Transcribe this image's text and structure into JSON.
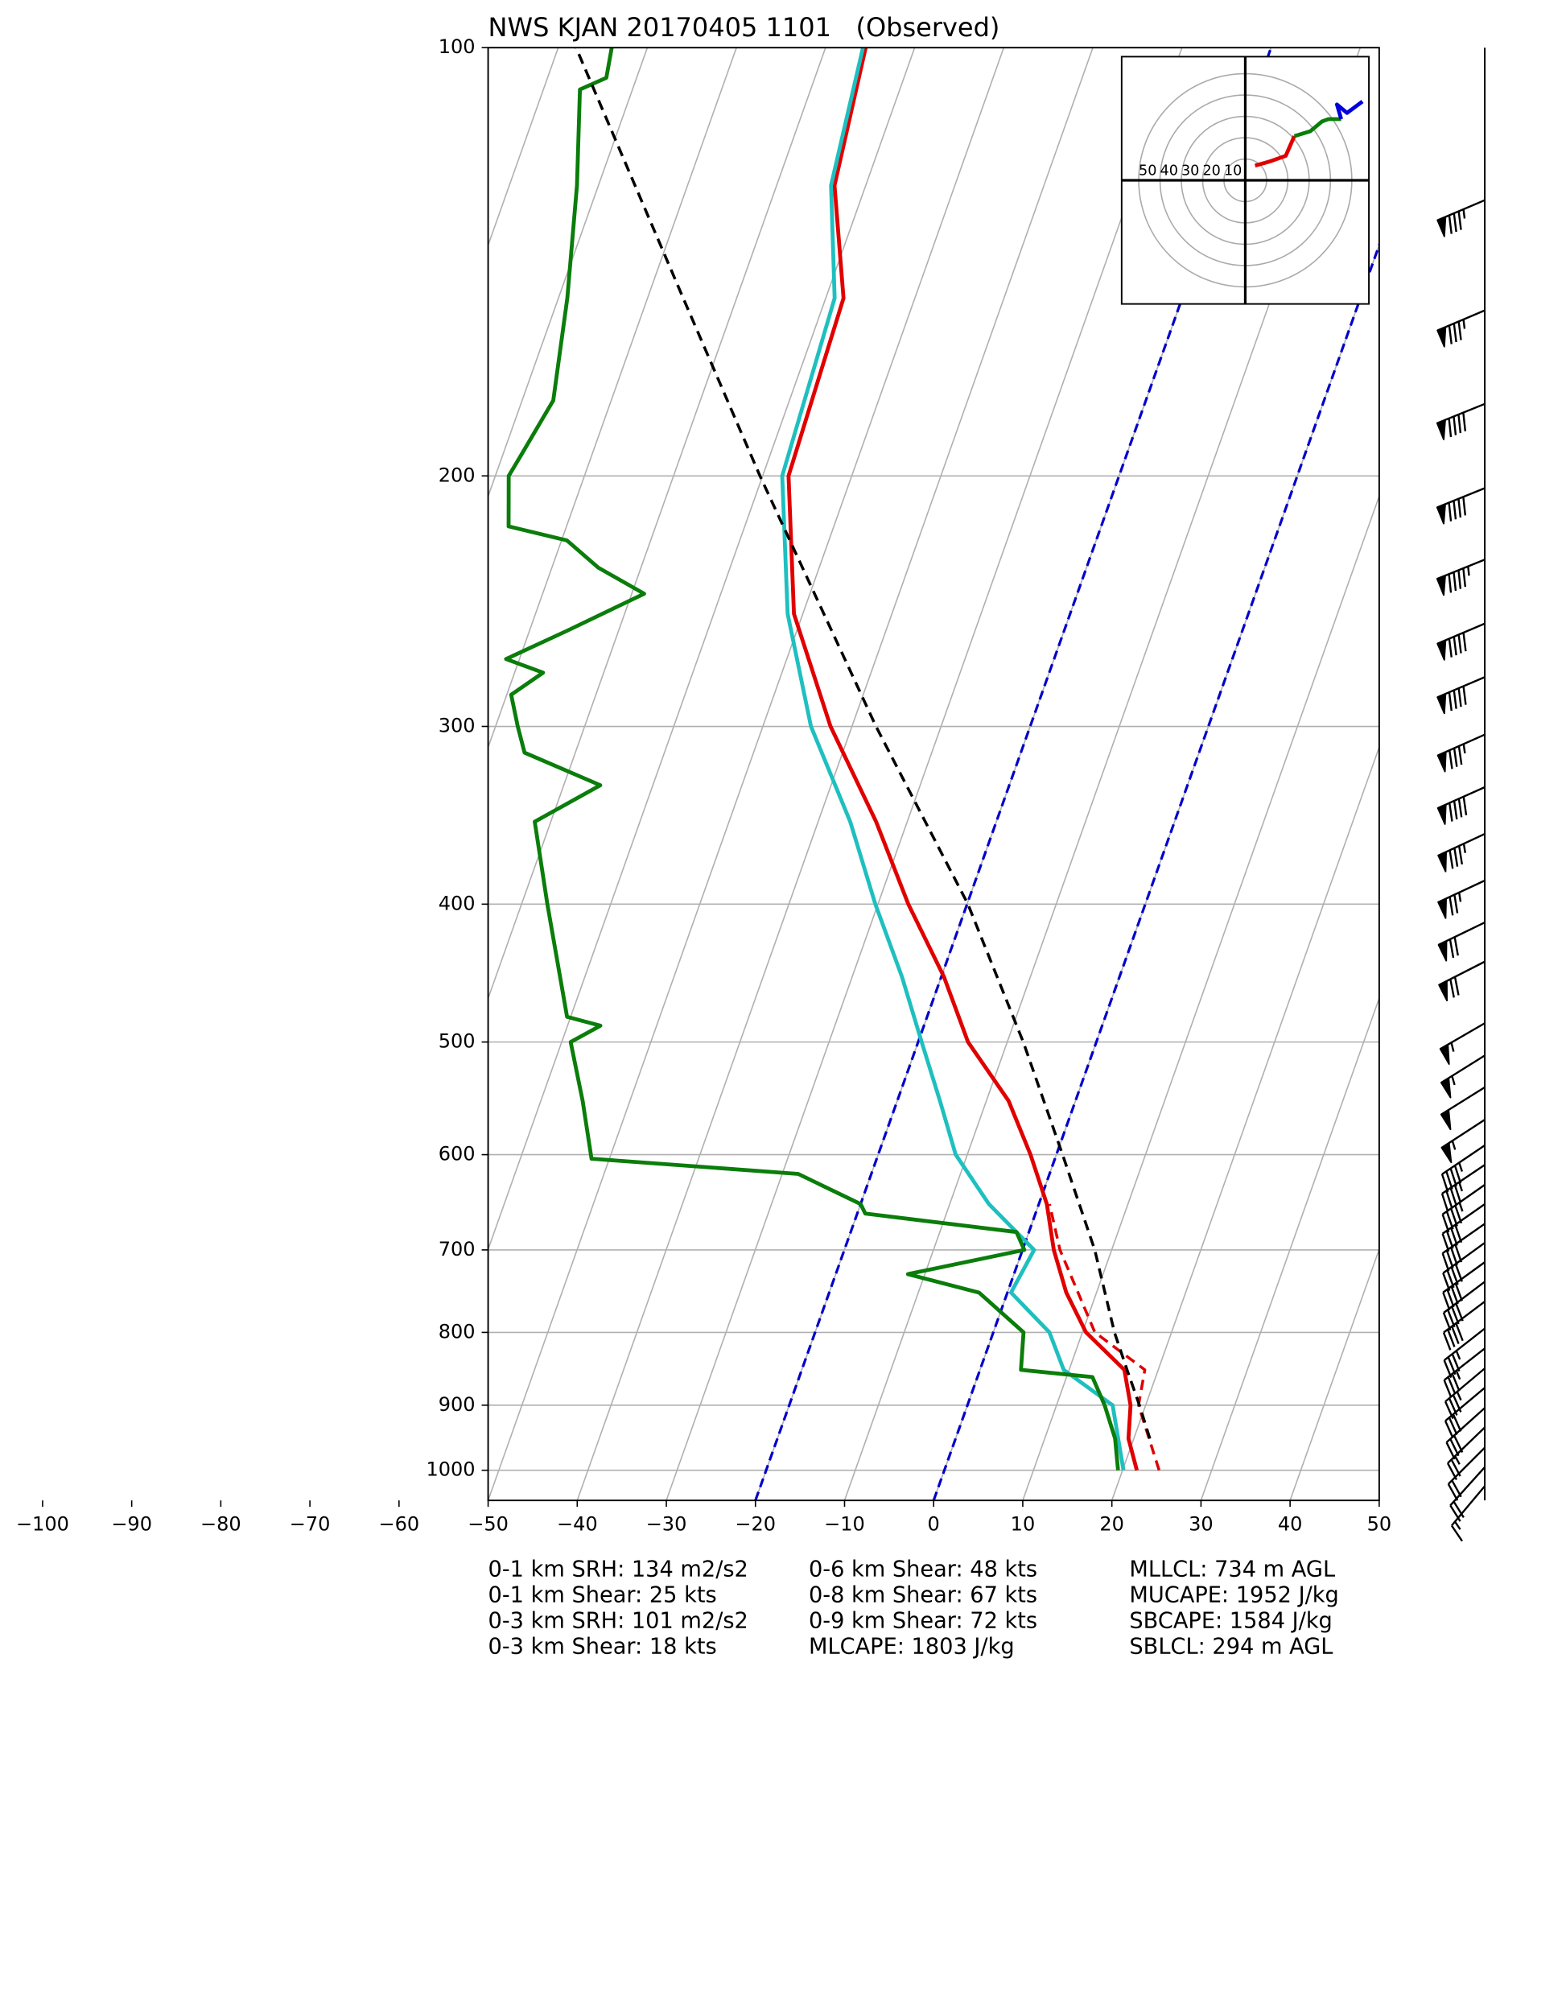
{
  "chart_data": {
    "type": "skewt",
    "title": "NWS KJAN 20170405 1101   (Observed)",
    "xlim": [
      -50,
      50
    ],
    "xticks": [
      {
        "value": -100,
        "label": "−100"
      },
      {
        "value": -90,
        "label": "−90"
      },
      {
        "value": -80,
        "label": "−80"
      },
      {
        "value": -70,
        "label": "−70"
      },
      {
        "value": -60,
        "label": "−60"
      },
      {
        "value": -50,
        "label": "−50"
      },
      {
        "value": -40,
        "label": "−40"
      },
      {
        "value": -30,
        "label": "−30"
      },
      {
        "value": -20,
        "label": "−20"
      },
      {
        "value": -10,
        "label": "−10"
      },
      0,
      10,
      20,
      30,
      40,
      50
    ],
    "ylim": [
      1050,
      100
    ],
    "yticks": [
      100,
      200,
      300,
      400,
      500,
      600,
      700,
      800,
      900,
      1000
    ],
    "log_y": true,
    "grid": true,
    "highlight_isotherms": [
      {
        "value": -20,
        "color": "#0000cc"
      },
      {
        "value": 0,
        "color": "#0000cc"
      }
    ],
    "profiles": [
      {
        "color": "#e00000",
        "dash": false,
        "pressure": [
          1000,
          950,
          900,
          850,
          800,
          750,
          700,
          650,
          600,
          550,
          500,
          450,
          400,
          350,
          300,
          250,
          200,
          150,
          125,
          100
        ],
        "values": [
          21.6,
          19.4,
          18.3,
          16.2,
          10.4,
          6.6,
          3.5,
          0.9,
          -2.9,
          -7.5,
          -14.4,
          -19.7,
          -26.6,
          -33.5,
          -42.4,
          -51,
          -57.1,
          -58,
          -63.5,
          -65.5
        ]
      },
      {
        "color": "#e00000",
        "dash": true,
        "pressure": [
          1000,
          900,
          850,
          800,
          700,
          650
        ],
        "values": [
          24.1,
          19.2,
          18.5,
          11.4,
          4.2,
          1.2
        ]
      },
      {
        "color": "#1fbfbf",
        "dash": false,
        "pressure": [
          1000,
          900,
          850,
          800,
          750,
          700,
          650,
          600,
          550,
          500,
          450,
          400,
          350,
          300,
          250,
          200,
          150,
          125,
          100
        ],
        "values": [
          20.1,
          16.3,
          9.4,
          6.3,
          0.4,
          1.3,
          -5.6,
          -11.3,
          -15.2,
          -19.6,
          -24.4,
          -30.3,
          -36.4,
          -44.6,
          -51.7,
          -57.8,
          -59,
          -63.9,
          -65.8
        ]
      },
      {
        "color": "#0a7d0a",
        "dash": false,
        "pressure": [
          1000,
          950,
          900,
          860,
          850,
          800,
          750,
          728,
          700,
          680,
          660,
          650,
          619,
          604,
          550,
          500,
          487,
          480,
          400,
          350,
          330,
          313,
          300,
          285,
          275,
          269,
          257,
          242,
          232,
          222,
          217,
          200,
          193,
          177,
          150,
          125,
          107,
          105,
          100
        ],
        "values": [
          19.5,
          17.9,
          15.4,
          12.9,
          4.6,
          3.4,
          -3.2,
          -11.9,
          0.2,
          -1.4,
          -19.1,
          -20,
          -28.2,
          -52,
          -55.3,
          -59,
          -56.3,
          -60.4,
          -67.1,
          -71.8,
          -65.9,
          -75.7,
          -77.5,
          -79.5,
          -76.8,
          -81.5,
          -75.8,
          -68.6,
          -74.8,
          -79.4,
          -86.5,
          -88.5,
          -87.9,
          -86.5,
          -89,
          -92.4,
          -95.9,
          -93.4,
          -94
        ]
      },
      {
        "color": "#000000",
        "dash": true,
        "pressure": [
          950,
          900,
          850,
          800,
          700,
          600,
          500,
          400,
          300,
          200,
          150,
          100
        ],
        "values": [
          21.8,
          19.3,
          16.5,
          13.6,
          8.1,
          0.7,
          -8.2,
          -19.9,
          -37.3,
          -60.3,
          -76,
          -98
        ]
      }
    ],
    "wind_barbs": {
      "pressure": [
        128,
        153,
        178,
        204,
        229,
        254,
        277,
        304,
        331,
        357,
        385,
        412,
        439,
        485,
        511,
        538,
        567,
        591,
        610,
        630,
        650,
        671,
        692,
        714,
        737,
        761,
        795,
        821,
        848,
        875,
        904,
        933,
        964,
        995,
        1026
      ],
      "speed": [
        85,
        85,
        90,
        90,
        95,
        90,
        90,
        85,
        90,
        85,
        75,
        70,
        70,
        55,
        55,
        50,
        55,
        45,
        45,
        45,
        40,
        40,
        40,
        40,
        40,
        40,
        35,
        35,
        35,
        30,
        30,
        25,
        20,
        20,
        15
      ],
      "direction": [
        247,
        247,
        248,
        248,
        248,
        247,
        247,
        246,
        246,
        245,
        245,
        244,
        243,
        240,
        238,
        238,
        237,
        236,
        236,
        235,
        235,
        235,
        234,
        234,
        233,
        233,
        232,
        232,
        230,
        230,
        228,
        226,
        225,
        222,
        220
      ]
    },
    "hodograph": {
      "lim": [
        -58,
        58
      ],
      "rings": [
        10,
        20,
        30,
        40,
        50
      ],
      "segments": [
        {
          "color": "#e00000",
          "u": [
            4.6,
            12,
            19,
            23
          ],
          "v": [
            6.9,
            9,
            11.5,
            20.7
          ]
        },
        {
          "color": "#0a7d0a",
          "u": [
            23,
            30.5,
            36,
            39,
            45
          ],
          "v": [
            20.7,
            23,
            27.6,
            28.7,
            28.7
          ]
        },
        {
          "color": "#0000dd",
          "u": [
            45,
            43,
            47.7,
            55
          ],
          "v": [
            28.7,
            35.6,
            31.6,
            37
          ]
        }
      ]
    },
    "stats": [
      [
        "0-1 km SRH: 134 m2/s2",
        "0-1 km Shear: 25 kts",
        "0-3 km SRH: 101 m2/s2",
        "0-3 km Shear: 18 kts"
      ],
      [
        "0-6 km Shear: 48 kts",
        "0-8 km Shear: 67 kts",
        "0-9 km Shear: 72 kts",
        "MLCAPE: 1803 J/kg"
      ],
      [
        "MLLCL: 734 m AGL",
        "MUCAPE: 1952 J/kg",
        "SBCAPE: 1584 J/kg",
        "SBLCL: 294 m AGL"
      ]
    ]
  }
}
